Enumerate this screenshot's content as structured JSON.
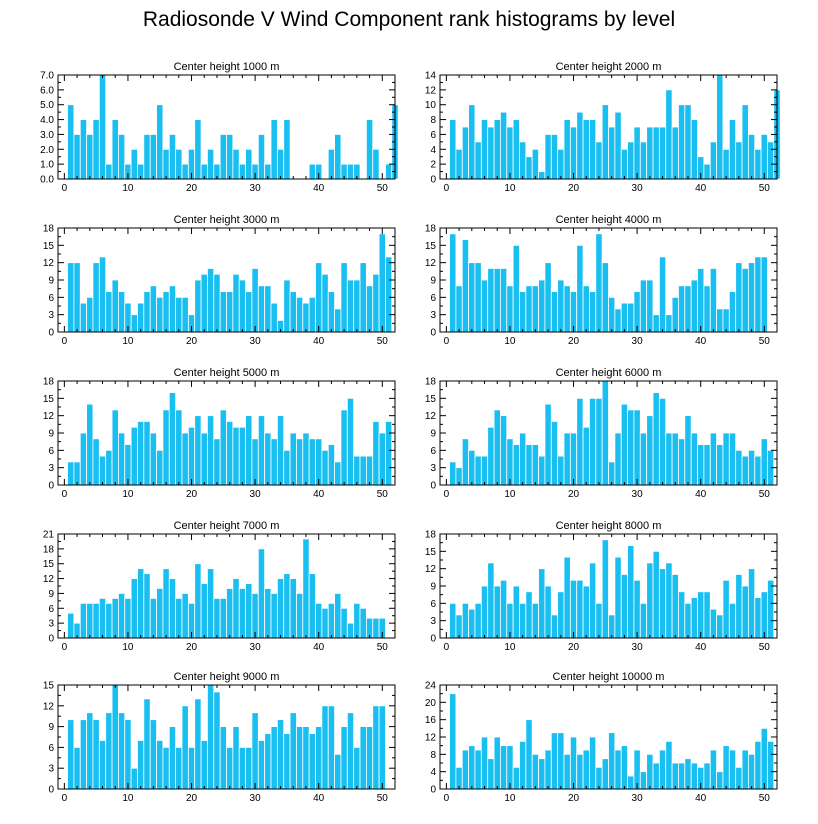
{
  "title": "Radiosonde V Wind Component rank histograms by level",
  "colors": {
    "bar": "#1ABFF2",
    "bar_edge": "#FFFFFF",
    "axis": "#000000"
  },
  "chart_data": [
    {
      "type": "bar",
      "title": "Center height 1000 m",
      "xlim": [
        -1,
        52
      ],
      "ylim": [
        0,
        7
      ],
      "xticks": [
        0,
        10,
        20,
        30,
        40,
        50
      ],
      "yticks": [
        0,
        1,
        2,
        3,
        4,
        5,
        6,
        7
      ],
      "xtick_labels": [
        "0",
        "10",
        "20",
        "30",
        "40",
        "50"
      ],
      "ytick_labels": [
        "0.0",
        "1.0",
        "2.0",
        "3.0",
        "4.0",
        "5.0",
        "6.0",
        "7.0"
      ],
      "values": [
        0,
        5,
        3,
        4,
        3,
        4,
        7,
        1,
        4,
        3,
        1,
        2,
        1,
        3,
        3,
        5,
        2,
        3,
        2,
        1,
        2,
        4,
        1,
        2,
        1,
        3,
        3,
        2,
        1,
        2,
        1,
        3,
        1,
        4,
        2,
        4,
        0,
        0,
        0,
        1,
        1,
        0,
        2,
        3,
        1,
        1,
        1,
        0,
        4,
        2,
        0,
        1,
        5
      ]
    },
    {
      "type": "bar",
      "title": "Center height 2000 m",
      "xlim": [
        -1,
        52
      ],
      "ylim": [
        0,
        14
      ],
      "xticks": [
        0,
        10,
        20,
        30,
        40,
        50
      ],
      "yticks": [
        0,
        2,
        4,
        6,
        8,
        10,
        12,
        14
      ],
      "xtick_labels": [
        "0",
        "10",
        "20",
        "30",
        "40",
        "50"
      ],
      "ytick_labels": [
        "0",
        "2",
        "4",
        "6",
        "8",
        "10",
        "12",
        "14"
      ],
      "values": [
        0,
        8,
        4,
        7,
        10,
        5,
        8,
        7,
        8,
        9,
        7,
        8,
        5,
        3,
        4,
        1,
        6,
        6,
        4,
        8,
        7,
        9,
        8,
        8,
        5,
        10,
        7,
        9,
        4,
        5,
        7,
        5,
        7,
        7,
        7,
        12,
        7,
        10,
        10,
        8,
        3,
        2,
        5,
        14,
        4,
        8,
        5,
        10,
        6,
        4,
        6,
        5,
        12
      ]
    },
    {
      "type": "bar",
      "title": "Center height 3000 m",
      "xlim": [
        -1,
        52
      ],
      "ylim": [
        0,
        18
      ],
      "xticks": [
        0,
        10,
        20,
        30,
        40,
        50
      ],
      "yticks": [
        0,
        3,
        6,
        9,
        12,
        15,
        18
      ],
      "xtick_labels": [
        "0",
        "10",
        "20",
        "30",
        "40",
        "50"
      ],
      "ytick_labels": [
        "0",
        "3",
        "6",
        "9",
        "12",
        "15",
        "18"
      ],
      "values": [
        0,
        12,
        12,
        5,
        6,
        12,
        13,
        7,
        9,
        7,
        5,
        3,
        5,
        7,
        8,
        6,
        7,
        8,
        6,
        6,
        3,
        9,
        10,
        11,
        10,
        7,
        7,
        10,
        9,
        7,
        11,
        8,
        8,
        5,
        2,
        9,
        7,
        6,
        5,
        6,
        12,
        10,
        7,
        4,
        12,
        9,
        9,
        12,
        8,
        10,
        17,
        13,
        0
      ]
    },
    {
      "type": "bar",
      "title": "Center height 4000 m",
      "xlim": [
        -1,
        52
      ],
      "ylim": [
        0,
        18
      ],
      "xticks": [
        0,
        10,
        20,
        30,
        40,
        50
      ],
      "yticks": [
        0,
        3,
        6,
        9,
        12,
        15,
        18
      ],
      "xtick_labels": [
        "0",
        "10",
        "20",
        "30",
        "40",
        "50"
      ],
      "ytick_labels": [
        "0",
        "3",
        "6",
        "9",
        "12",
        "15",
        "18"
      ],
      "values": [
        0,
        17,
        8,
        16,
        12,
        12,
        9,
        11,
        11,
        11,
        8,
        15,
        7,
        8,
        8,
        9,
        12,
        7,
        9,
        8,
        7,
        15,
        8,
        7,
        17,
        12,
        6,
        4,
        5,
        5,
        7,
        9,
        9,
        3,
        13,
        3,
        6,
        8,
        8,
        9,
        11,
        8,
        11,
        4,
        4,
        7,
        12,
        11,
        12,
        13,
        13,
        0,
        0
      ]
    },
    {
      "type": "bar",
      "title": "Center height 5000 m",
      "xlim": [
        -1,
        52
      ],
      "ylim": [
        0,
        18
      ],
      "xticks": [
        0,
        10,
        20,
        30,
        40,
        50
      ],
      "yticks": [
        0,
        3,
        6,
        9,
        12,
        15,
        18
      ],
      "xtick_labels": [
        "0",
        "10",
        "20",
        "30",
        "40",
        "50"
      ],
      "ytick_labels": [
        "0",
        "3",
        "6",
        "9",
        "12",
        "15",
        "18"
      ],
      "values": [
        0,
        4,
        4,
        9,
        14,
        8,
        5,
        6,
        13,
        9,
        7,
        10,
        11,
        11,
        9,
        6,
        13,
        16,
        13,
        9,
        10,
        12,
        9,
        12,
        8,
        13,
        11,
        10,
        10,
        12,
        8,
        12,
        9,
        8,
        12,
        6,
        9,
        8,
        9,
        8,
        8,
        6,
        7,
        4,
        13,
        15,
        5,
        5,
        5,
        11,
        9,
        11,
        0
      ]
    },
    {
      "type": "bar",
      "title": "Center height 6000 m",
      "xlim": [
        -1,
        52
      ],
      "ylim": [
        0,
        18
      ],
      "xticks": [
        0,
        10,
        20,
        30,
        40,
        50
      ],
      "yticks": [
        0,
        3,
        6,
        9,
        12,
        15,
        18
      ],
      "xtick_labels": [
        "0",
        "10",
        "20",
        "30",
        "40",
        "50"
      ],
      "ytick_labels": [
        "0",
        "3",
        "6",
        "9",
        "12",
        "15",
        "18"
      ],
      "values": [
        0,
        4,
        3,
        8,
        6,
        5,
        5,
        10,
        13,
        12,
        8,
        7,
        9,
        7,
        7,
        5,
        14,
        11,
        5,
        9,
        9,
        15,
        10,
        15,
        15,
        18,
        4,
        9,
        14,
        13,
        13,
        9,
        12,
        16,
        15,
        9,
        9,
        8,
        12,
        9,
        7,
        7,
        9,
        7,
        9,
        9,
        6,
        5,
        6,
        5,
        8,
        6,
        0
      ]
    },
    {
      "type": "bar",
      "title": "Center height 7000 m",
      "xlim": [
        -1,
        52
      ],
      "ylim": [
        0,
        21
      ],
      "xticks": [
        0,
        10,
        20,
        30,
        40,
        50
      ],
      "yticks": [
        0,
        3,
        6,
        9,
        12,
        15,
        18,
        21
      ],
      "xtick_labels": [
        "0",
        "10",
        "20",
        "30",
        "40",
        "50"
      ],
      "ytick_labels": [
        "0",
        "3",
        "6",
        "9",
        "12",
        "15",
        "18",
        "21"
      ],
      "values": [
        0,
        5,
        3,
        7,
        7,
        7,
        8,
        7,
        8,
        9,
        8,
        12,
        14,
        13,
        8,
        10,
        14,
        12,
        8,
        9,
        7,
        15,
        11,
        14,
        8,
        8,
        10,
        12,
        10,
        11,
        9,
        18,
        10,
        9,
        12,
        13,
        12,
        9,
        20,
        13,
        7,
        6,
        7,
        9,
        6,
        3,
        7,
        6,
        4,
        4,
        4,
        0,
        0
      ]
    },
    {
      "type": "bar",
      "title": "Center height 8000 m",
      "xlim": [
        -1,
        52
      ],
      "ylim": [
        0,
        18
      ],
      "xticks": [
        0,
        10,
        20,
        30,
        40,
        50
      ],
      "yticks": [
        0,
        3,
        6,
        9,
        12,
        15,
        18
      ],
      "xtick_labels": [
        "0",
        "10",
        "20",
        "30",
        "40",
        "50"
      ],
      "ytick_labels": [
        "0",
        "3",
        "6",
        "9",
        "12",
        "15",
        "18"
      ],
      "values": [
        0,
        6,
        4,
        6,
        5,
        6,
        9,
        13,
        9,
        10,
        6,
        9,
        6,
        8,
        6,
        12,
        9,
        4,
        8,
        14,
        10,
        10,
        9,
        13,
        6,
        17,
        4,
        14,
        11,
        16,
        10,
        6,
        13,
        15,
        12,
        13,
        11,
        8,
        6,
        7,
        8,
        8,
        5,
        4,
        10,
        6,
        11,
        9,
        12,
        7,
        8,
        10,
        0
      ]
    },
    {
      "type": "bar",
      "title": "Center height 9000 m",
      "xlim": [
        -1,
        52
      ],
      "ylim": [
        0,
        15
      ],
      "xticks": [
        0,
        10,
        20,
        30,
        40,
        50
      ],
      "yticks": [
        0,
        3,
        6,
        9,
        12,
        15
      ],
      "xtick_labels": [
        "0",
        "10",
        "20",
        "30",
        "40",
        "50"
      ],
      "ytick_labels": [
        "0",
        "3",
        "6",
        "9",
        "12",
        "15"
      ],
      "values": [
        0,
        10,
        6,
        10,
        11,
        10,
        7,
        11,
        15,
        11,
        10,
        3,
        7,
        13,
        10,
        7,
        6,
        9,
        6,
        12,
        6,
        13,
        7,
        15,
        14,
        9,
        6,
        9,
        6,
        6,
        11,
        7,
        8,
        9,
        10,
        8,
        11,
        9,
        9,
        8,
        9,
        12,
        12,
        5,
        9,
        11,
        6,
        9,
        9,
        12,
        12,
        0,
        0
      ]
    },
    {
      "type": "bar",
      "title": "Center height 10000 m",
      "xlim": [
        -1,
        52
      ],
      "ylim": [
        0,
        24
      ],
      "xticks": [
        0,
        10,
        20,
        30,
        40,
        50
      ],
      "yticks": [
        0,
        4,
        8,
        12,
        16,
        20,
        24
      ],
      "xtick_labels": [
        "0",
        "10",
        "20",
        "30",
        "40",
        "50"
      ],
      "ytick_labels": [
        "0",
        "4",
        "8",
        "12",
        "16",
        "20",
        "24"
      ],
      "values": [
        0,
        22,
        5,
        9,
        10,
        9,
        12,
        7,
        12,
        10,
        10,
        5,
        11,
        16,
        8,
        7,
        9,
        13,
        13,
        8,
        12,
        8,
        9,
        12,
        5,
        7,
        13,
        9,
        10,
        3,
        9,
        4,
        8,
        6,
        9,
        11,
        6,
        6,
        7,
        6,
        5,
        6,
        9,
        4,
        10,
        9,
        5,
        9,
        8,
        11,
        14,
        11,
        0
      ]
    }
  ]
}
